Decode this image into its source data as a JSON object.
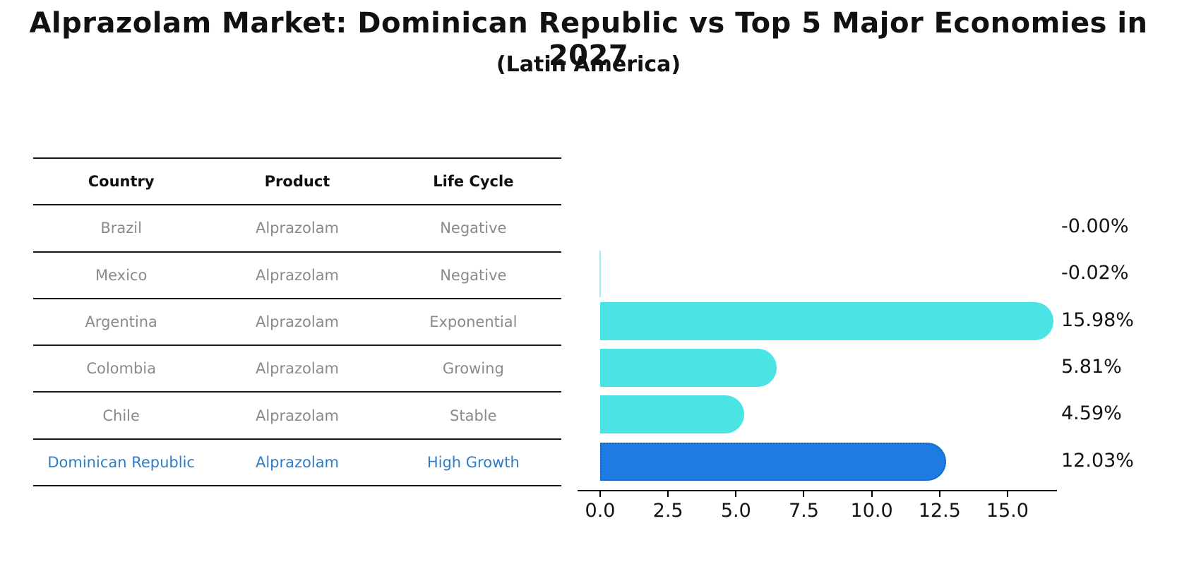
{
  "figure": {
    "title": "Alprazolam Market: Dominican Republic vs Top 5 Major Economies in 2027",
    "subtitle": "(Latin America)"
  },
  "table": {
    "headers": [
      "Country",
      "Product",
      "Life Cycle"
    ],
    "rows": [
      [
        "Brazil",
        "Alprazolam",
        "Negative"
      ],
      [
        "Mexico",
        "Alprazolam",
        "Negative"
      ],
      [
        "Argentina",
        "Alprazolam",
        "Exponential"
      ],
      [
        "Colombia",
        "Alprazolam",
        "Growing"
      ],
      [
        "Chile",
        "Alprazolam",
        "Stable"
      ],
      [
        "Dominican Republic",
        "Alprazolam",
        "High Growth"
      ]
    ],
    "highlight_row_index": 5,
    "body_text_color": "#8a8a8a",
    "highlight_text_color": "#2D7EC8"
  },
  "chart_data": {
    "type": "bar",
    "orientation": "horizontal",
    "title": "Alprazolam Market: Dominican Republic vs Top 5 Major Economies in 2027",
    "subtitle": "(Latin America)",
    "categories": [
      "Brazil",
      "Mexico",
      "Argentina",
      "Colombia",
      "Chile",
      "Dominican Republic"
    ],
    "values": [
      -0.0,
      -0.02,
      15.98,
      5.81,
      4.59,
      12.03
    ],
    "value_labels": [
      "-0.00%",
      "-0.02%",
      "15.98%",
      "5.81%",
      "4.59%",
      "12.03%"
    ],
    "x_ticks": [
      0.0,
      2.5,
      5.0,
      7.5,
      10.0,
      12.5,
      15.0
    ],
    "x_tick_labels": [
      "0.0",
      "2.5",
      "5.0",
      "7.5",
      "10.0",
      "12.5",
      "15.0"
    ],
    "xlim": [
      -0.8,
      16.9
    ],
    "xlabel": "",
    "ylabel": "",
    "grid": false,
    "legend": null,
    "highlight_index": 5,
    "bar_color": "#4AE4E4",
    "highlight_bar_color": "#1E7BE1",
    "highlight_border_color": "#1565C0",
    "value_label_color": "#141414"
  }
}
